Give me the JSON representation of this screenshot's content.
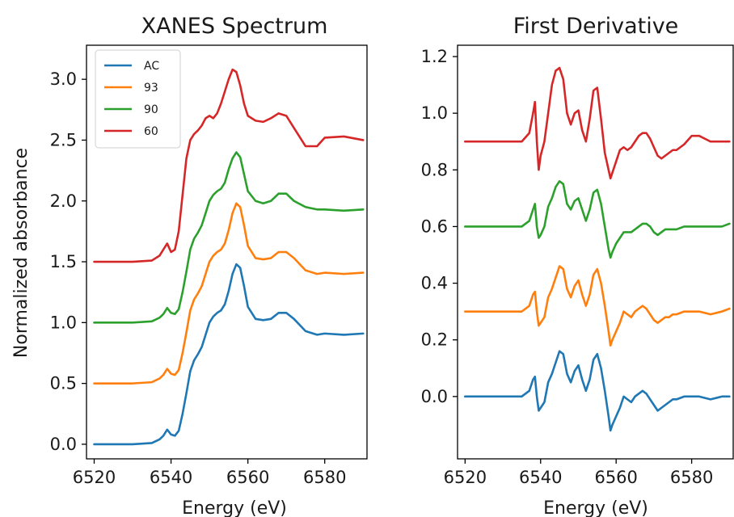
{
  "chart_data": [
    {
      "type": "line",
      "title": "XANES Spectrum",
      "xlabel": "Energy (eV)",
      "ylabel": "Normalized absorbance",
      "xlim": [
        6518,
        6591
      ],
      "ylim": [
        -0.12,
        3.28
      ],
      "xticks": [
        6520,
        6540,
        6560,
        6580
      ],
      "yticks": [
        0.0,
        0.5,
        1.0,
        1.5,
        2.0,
        2.5,
        3.0
      ],
      "ytick_labels": [
        "0.0",
        "0.5",
        "1.0",
        "1.5",
        "2.0",
        "2.5",
        "3.0"
      ],
      "legend_position": "top-left",
      "grid": false,
      "series": [
        {
          "name": "AC",
          "color": "#1f77b4",
          "x": [
            6520,
            6525,
            6530,
            6535,
            6537,
            6538,
            6539,
            6540,
            6541,
            6542,
            6543,
            6544,
            6545,
            6546,
            6547,
            6548,
            6549,
            6550,
            6551,
            6552,
            6553,
            6554,
            6555,
            6556,
            6557,
            6558,
            6559,
            6560,
            6562,
            6564,
            6566,
            6568,
            6570,
            6572,
            6575,
            6578,
            6580,
            6585,
            6590
          ],
          "y": [
            0.0,
            0.0,
            0.0,
            0.01,
            0.04,
            0.07,
            0.12,
            0.08,
            0.07,
            0.11,
            0.25,
            0.42,
            0.6,
            0.69,
            0.74,
            0.8,
            0.9,
            1.0,
            1.05,
            1.08,
            1.1,
            1.15,
            1.26,
            1.4,
            1.48,
            1.45,
            1.3,
            1.13,
            1.03,
            1.02,
            1.03,
            1.08,
            1.08,
            1.03,
            0.93,
            0.9,
            0.91,
            0.9,
            0.91
          ]
        },
        {
          "name": "93",
          "color": "#ff7f0e",
          "x": [
            6520,
            6525,
            6530,
            6535,
            6537,
            6538,
            6539,
            6540,
            6541,
            6542,
            6543,
            6544,
            6545,
            6546,
            6547,
            6548,
            6549,
            6550,
            6551,
            6552,
            6553,
            6554,
            6555,
            6556,
            6557,
            6558,
            6559,
            6560,
            6562,
            6564,
            6566,
            6568,
            6570,
            6572,
            6575,
            6578,
            6580,
            6585,
            6590
          ],
          "y": [
            0.5,
            0.5,
            0.5,
            0.51,
            0.54,
            0.57,
            0.62,
            0.58,
            0.57,
            0.61,
            0.75,
            0.92,
            1.1,
            1.19,
            1.24,
            1.3,
            1.4,
            1.5,
            1.55,
            1.58,
            1.6,
            1.65,
            1.76,
            1.9,
            1.98,
            1.95,
            1.8,
            1.63,
            1.53,
            1.52,
            1.53,
            1.58,
            1.58,
            1.53,
            1.43,
            1.4,
            1.41,
            1.4,
            1.41
          ]
        },
        {
          "name": "90",
          "color": "#2ca02c",
          "x": [
            6520,
            6525,
            6530,
            6535,
            6537,
            6538,
            6539,
            6540,
            6541,
            6542,
            6543,
            6544,
            6545,
            6546,
            6547,
            6548,
            6549,
            6550,
            6551,
            6552,
            6553,
            6554,
            6555,
            6556,
            6557,
            6558,
            6559,
            6560,
            6562,
            6564,
            6566,
            6568,
            6570,
            6572,
            6575,
            6578,
            6580,
            6585,
            6590
          ],
          "y": [
            1.0,
            1.0,
            1.0,
            1.01,
            1.04,
            1.07,
            1.12,
            1.08,
            1.07,
            1.11,
            1.25,
            1.42,
            1.6,
            1.69,
            1.74,
            1.8,
            1.9,
            2.0,
            2.05,
            2.08,
            2.1,
            2.15,
            2.26,
            2.35,
            2.4,
            2.36,
            2.22,
            2.08,
            2.0,
            1.98,
            2.0,
            2.06,
            2.06,
            2.0,
            1.95,
            1.93,
            1.93,
            1.92,
            1.93
          ]
        },
        {
          "name": "60",
          "color": "#d62728",
          "x": [
            6520,
            6525,
            6530,
            6535,
            6537,
            6538,
            6539,
            6540,
            6541,
            6542,
            6543,
            6544,
            6545,
            6546,
            6547,
            6548,
            6549,
            6550,
            6551,
            6552,
            6553,
            6554,
            6555,
            6556,
            6557,
            6558,
            6559,
            6560,
            6562,
            6564,
            6566,
            6568,
            6570,
            6572,
            6575,
            6578,
            6580,
            6585,
            6590
          ],
          "y": [
            1.5,
            1.5,
            1.5,
            1.51,
            1.55,
            1.6,
            1.65,
            1.58,
            1.6,
            1.75,
            2.05,
            2.35,
            2.5,
            2.55,
            2.58,
            2.62,
            2.68,
            2.7,
            2.68,
            2.72,
            2.8,
            2.9,
            3.0,
            3.08,
            3.06,
            2.95,
            2.8,
            2.7,
            2.66,
            2.65,
            2.68,
            2.72,
            2.7,
            2.6,
            2.45,
            2.45,
            2.52,
            2.53,
            2.5
          ]
        }
      ]
    },
    {
      "type": "line",
      "title": "First Derivative",
      "xlabel": "Energy (eV)",
      "ylabel": "",
      "xlim": [
        6518,
        6591
      ],
      "ylim": [
        -0.22,
        1.24
      ],
      "xticks": [
        6520,
        6540,
        6560,
        6580
      ],
      "yticks": [
        0.0,
        0.2,
        0.4,
        0.6,
        0.8,
        1.0,
        1.2
      ],
      "ytick_labels": [
        "0.0",
        "0.2",
        "0.4",
        "0.6",
        "0.8",
        "1.0",
        "1.2"
      ],
      "grid": false,
      "series": [
        {
          "name": "AC",
          "color": "#1f77b4",
          "x": [
            6520,
            6530,
            6535,
            6537,
            6538,
            6538.5,
            6539,
            6539.5,
            6540,
            6541,
            6542,
            6543,
            6544,
            6545,
            6546,
            6547,
            6548,
            6549,
            6550,
            6551,
            6552,
            6553,
            6554,
            6555,
            6556,
            6557,
            6558,
            6558.5,
            6559,
            6560,
            6561,
            6562,
            6563,
            6564,
            6565,
            6566,
            6567,
            6568,
            6569,
            6570,
            6571,
            6572,
            6573,
            6574,
            6575,
            6576,
            6578,
            6580,
            6582,
            6585,
            6588,
            6590
          ],
          "y": [
            0.0,
            0.0,
            0.0,
            0.02,
            0.06,
            0.07,
            0.0,
            -0.05,
            -0.04,
            -0.02,
            0.05,
            0.08,
            0.12,
            0.16,
            0.15,
            0.08,
            0.05,
            0.09,
            0.11,
            0.06,
            0.02,
            0.06,
            0.13,
            0.15,
            0.1,
            0.02,
            -0.07,
            -0.12,
            -0.1,
            -0.07,
            -0.04,
            0.0,
            -0.01,
            -0.02,
            0.0,
            0.01,
            0.02,
            0.01,
            -0.01,
            -0.03,
            -0.05,
            -0.04,
            -0.03,
            -0.02,
            -0.01,
            -0.01,
            0.0,
            0.0,
            0.0,
            -0.01,
            0.0,
            0.0
          ]
        },
        {
          "name": "93",
          "color": "#ff7f0e",
          "x": [
            6520,
            6530,
            6535,
            6537,
            6538,
            6538.5,
            6539,
            6539.5,
            6540,
            6541,
            6542,
            6543,
            6544,
            6545,
            6546,
            6547,
            6548,
            6549,
            6550,
            6551,
            6552,
            6553,
            6554,
            6555,
            6556,
            6557,
            6558,
            6558.5,
            6559,
            6560,
            6561,
            6562,
            6563,
            6564,
            6565,
            6566,
            6567,
            6568,
            6569,
            6570,
            6571,
            6572,
            6573,
            6574,
            6575,
            6576,
            6578,
            6580,
            6582,
            6585,
            6588,
            6590
          ],
          "y": [
            0.3,
            0.3,
            0.3,
            0.32,
            0.36,
            0.37,
            0.3,
            0.25,
            0.26,
            0.28,
            0.35,
            0.38,
            0.42,
            0.46,
            0.45,
            0.38,
            0.35,
            0.39,
            0.41,
            0.36,
            0.32,
            0.36,
            0.43,
            0.45,
            0.4,
            0.32,
            0.23,
            0.18,
            0.2,
            0.23,
            0.26,
            0.3,
            0.29,
            0.28,
            0.3,
            0.31,
            0.32,
            0.31,
            0.29,
            0.27,
            0.26,
            0.27,
            0.28,
            0.28,
            0.29,
            0.29,
            0.3,
            0.3,
            0.3,
            0.29,
            0.3,
            0.31
          ]
        },
        {
          "name": "90",
          "color": "#2ca02c",
          "x": [
            6520,
            6530,
            6535,
            6537,
            6538,
            6538.5,
            6539,
            6539.5,
            6540,
            6541,
            6542,
            6543,
            6544,
            6545,
            6546,
            6547,
            6548,
            6549,
            6550,
            6551,
            6552,
            6553,
            6554,
            6555,
            6556,
            6557,
            6558,
            6558.5,
            6559,
            6560,
            6561,
            6562,
            6563,
            6564,
            6565,
            6566,
            6567,
            6568,
            6569,
            6570,
            6571,
            6572,
            6573,
            6574,
            6575,
            6576,
            6578,
            6580,
            6582,
            6585,
            6588,
            6590
          ],
          "y": [
            0.6,
            0.6,
            0.6,
            0.62,
            0.66,
            0.68,
            0.6,
            0.56,
            0.57,
            0.6,
            0.67,
            0.7,
            0.74,
            0.76,
            0.75,
            0.68,
            0.66,
            0.69,
            0.7,
            0.66,
            0.62,
            0.66,
            0.72,
            0.73,
            0.68,
            0.6,
            0.52,
            0.49,
            0.51,
            0.54,
            0.56,
            0.58,
            0.58,
            0.58,
            0.59,
            0.6,
            0.61,
            0.61,
            0.6,
            0.58,
            0.57,
            0.58,
            0.59,
            0.59,
            0.59,
            0.59,
            0.6,
            0.6,
            0.6,
            0.6,
            0.6,
            0.61
          ]
        },
        {
          "name": "60",
          "color": "#d62728",
          "x": [
            6520,
            6530,
            6535,
            6537,
            6538,
            6538.5,
            6539,
            6539.5,
            6540,
            6541,
            6542,
            6543,
            6544,
            6545,
            6546,
            6547,
            6548,
            6549,
            6550,
            6551,
            6552,
            6553,
            6554,
            6555,
            6556,
            6557,
            6558,
            6558.5,
            6559,
            6560,
            6561,
            6562,
            6563,
            6564,
            6565,
            6566,
            6567,
            6568,
            6569,
            6570,
            6571,
            6572,
            6573,
            6574,
            6575,
            6576,
            6578,
            6580,
            6582,
            6585,
            6588,
            6590
          ],
          "y": [
            0.9,
            0.9,
            0.9,
            0.93,
            1.0,
            1.04,
            0.9,
            0.8,
            0.85,
            0.9,
            1.0,
            1.1,
            1.15,
            1.16,
            1.12,
            1.0,
            0.96,
            1.0,
            1.01,
            0.94,
            0.9,
            0.98,
            1.08,
            1.09,
            0.98,
            0.86,
            0.8,
            0.77,
            0.79,
            0.83,
            0.87,
            0.88,
            0.87,
            0.88,
            0.9,
            0.92,
            0.93,
            0.93,
            0.91,
            0.88,
            0.85,
            0.84,
            0.85,
            0.86,
            0.87,
            0.87,
            0.89,
            0.92,
            0.92,
            0.9,
            0.9,
            0.9
          ]
        }
      ]
    }
  ]
}
